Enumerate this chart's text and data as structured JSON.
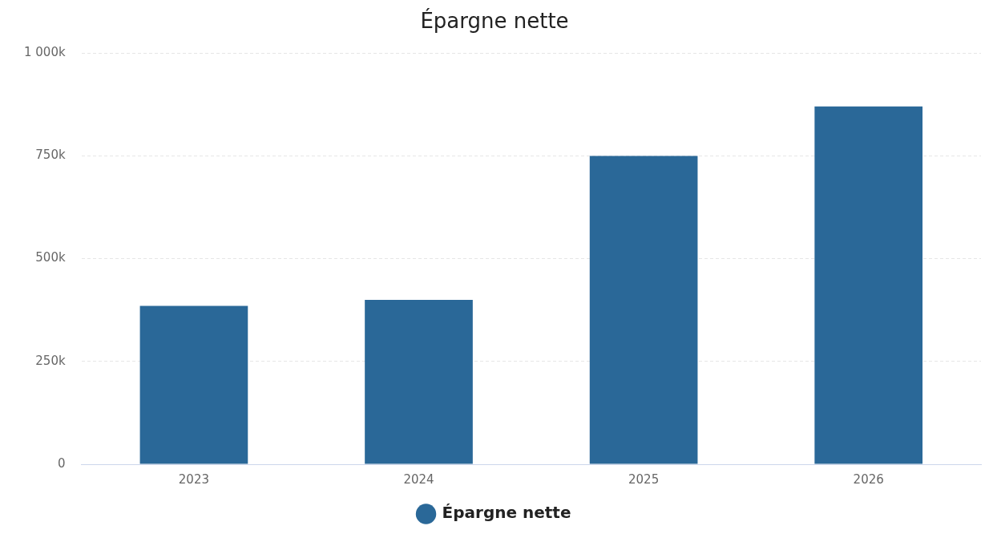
{
  "chart_data": {
    "type": "bar",
    "title": "Épargne nette",
    "categories": [
      "2023",
      "2024",
      "2025",
      "2026"
    ],
    "series": [
      {
        "name": "Épargne nette",
        "color": "#2a6898",
        "values": [
          385000,
          400000,
          750000,
          870000
        ]
      }
    ],
    "ylim": [
      0,
      1000000
    ],
    "yticks": [
      0,
      {
        "value": 250000,
        "label": "250k"
      },
      {
        "value": 500000,
        "label": "500k"
      },
      {
        "value": 750000,
        "label": "750k"
      },
      {
        "value": 1000000,
        "label": "1 000k"
      }
    ],
    "grid": "y",
    "legend": "bottom"
  }
}
